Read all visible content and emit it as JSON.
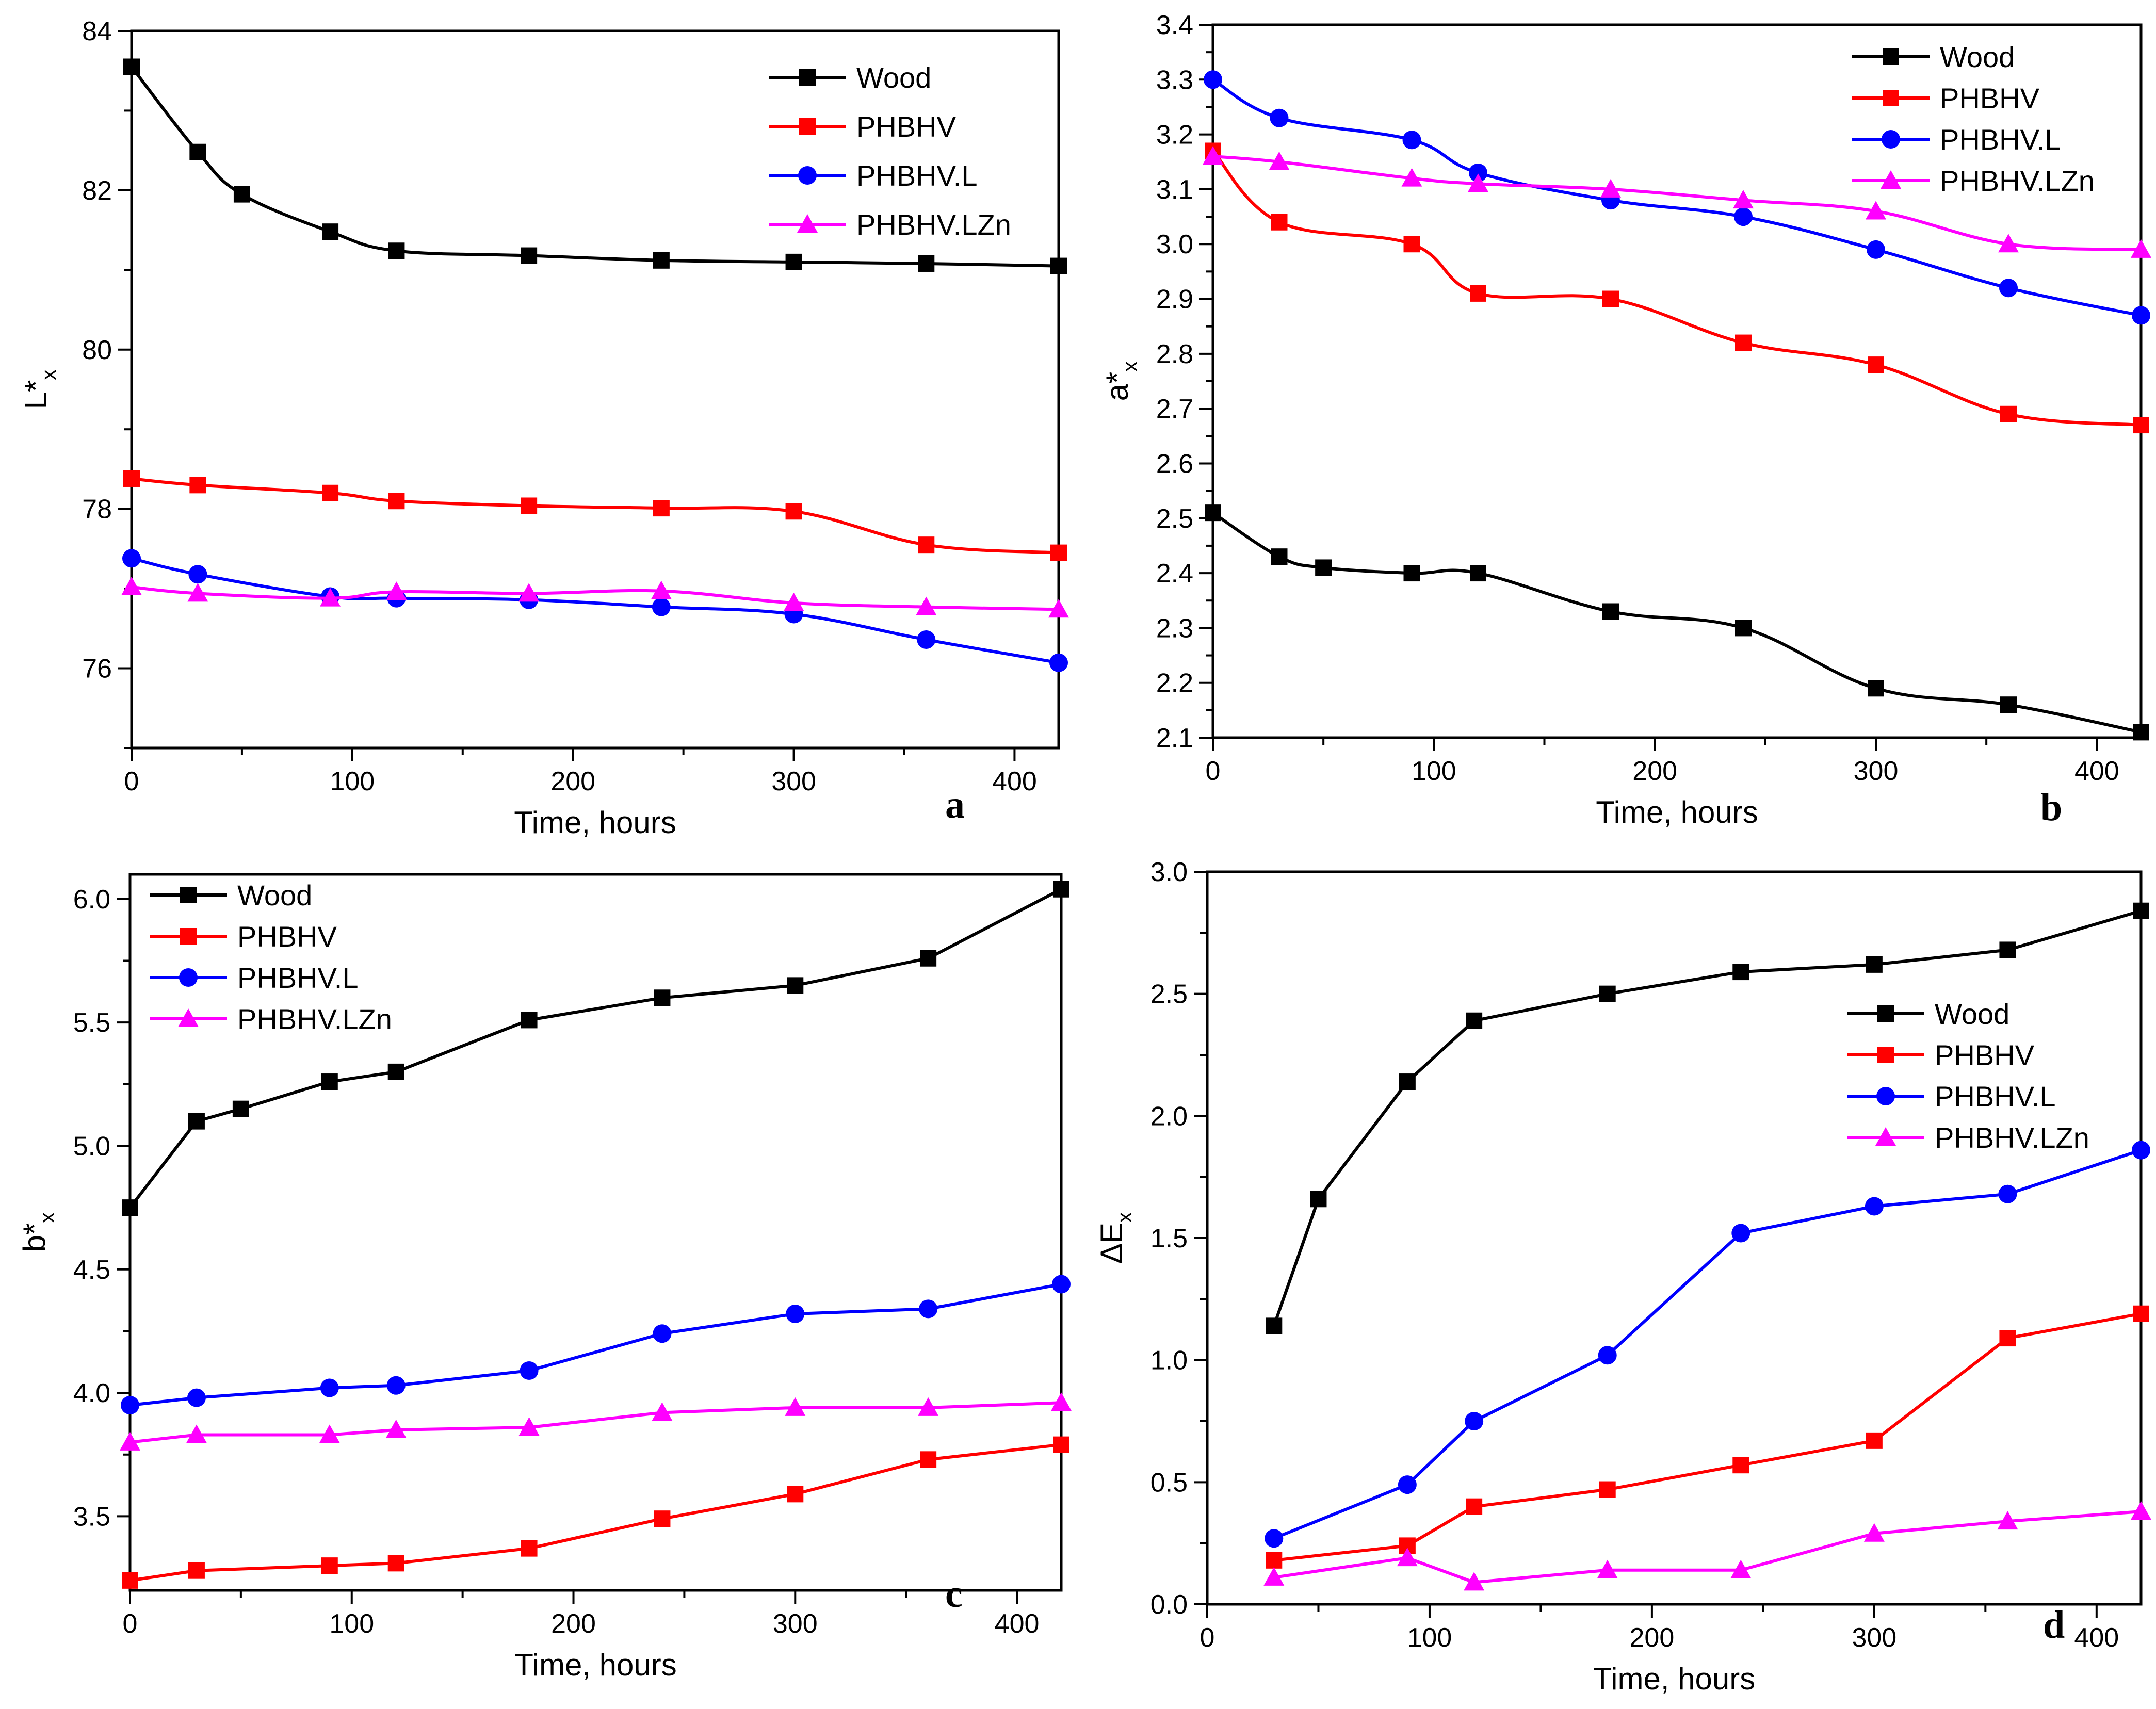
{
  "chart_data": [
    {
      "type": "line",
      "panel": "a",
      "xlabel": "Time, hours",
      "ylabel": "L*",
      "ylabel_sub": "x",
      "xlim": [
        0,
        420
      ],
      "ylim": [
        75,
        84
      ],
      "xticks": [
        0,
        100,
        200,
        300,
        400
      ],
      "yticks": [
        76,
        78,
        80,
        82,
        84
      ],
      "smooth": true,
      "legend_position": "top-right",
      "series": [
        {
          "name": "Wood",
          "color": "#000000",
          "marker": "square",
          "x": [
            0,
            30,
            50,
            90,
            120,
            180,
            240,
            300,
            360,
            420
          ],
          "y": [
            83.55,
            82.48,
            81.95,
            81.48,
            81.24,
            81.18,
            81.12,
            81.1,
            81.08,
            81.05
          ]
        },
        {
          "name": "PHBHV",
          "color": "#ff0000",
          "marker": "square",
          "x": [
            0,
            30,
            90,
            120,
            180,
            240,
            300,
            360,
            420
          ],
          "y": [
            78.38,
            78.3,
            78.2,
            78.1,
            78.04,
            78.01,
            77.97,
            77.55,
            77.45
          ]
        },
        {
          "name": "PHBHV.L",
          "color": "#0000ff",
          "marker": "circle",
          "x": [
            0,
            30,
            90,
            120,
            180,
            240,
            300,
            360,
            420
          ],
          "y": [
            77.38,
            77.18,
            76.9,
            76.88,
            76.86,
            76.77,
            76.68,
            76.36,
            76.07
          ]
        },
        {
          "name": "PHBHV.LZn",
          "color": "#ff00ff",
          "marker": "triangle",
          "x": [
            0,
            30,
            90,
            120,
            180,
            240,
            300,
            360,
            420
          ],
          "y": [
            77.02,
            76.94,
            76.88,
            76.96,
            76.94,
            76.97,
            76.82,
            76.77,
            76.74
          ]
        }
      ]
    },
    {
      "type": "line",
      "panel": "b",
      "xlabel": "Time, hours",
      "ylabel": "a*",
      "ylabel_sub": "x",
      "xlim": [
        0,
        420
      ],
      "ylim": [
        2.1,
        3.4
      ],
      "xticks": [
        0,
        100,
        200,
        300,
        400
      ],
      "yticks": [
        2.1,
        2.2,
        2.3,
        2.4,
        2.5,
        2.6,
        2.7,
        2.8,
        2.9,
        3.0,
        3.1,
        3.2,
        3.3,
        3.4
      ],
      "smooth": true,
      "legend_position": "top-right",
      "series": [
        {
          "name": "Wood",
          "color": "#000000",
          "marker": "square",
          "x": [
            0,
            30,
            50,
            90,
            120,
            180,
            240,
            300,
            360,
            420
          ],
          "y": [
            2.51,
            2.43,
            2.41,
            2.4,
            2.4,
            2.33,
            2.3,
            2.19,
            2.16,
            2.11
          ]
        },
        {
          "name": "PHBHV",
          "color": "#ff0000",
          "marker": "square",
          "x": [
            0,
            30,
            90,
            120,
            180,
            240,
            300,
            360,
            420
          ],
          "y": [
            3.17,
            3.04,
            3.0,
            2.91,
            2.9,
            2.82,
            2.78,
            2.69,
            2.67
          ]
        },
        {
          "name": "PHBHV.L",
          "color": "#0000ff",
          "marker": "circle",
          "x": [
            0,
            30,
            90,
            120,
            180,
            240,
            300,
            360,
            420
          ],
          "y": [
            3.3,
            3.23,
            3.19,
            3.13,
            3.08,
            3.05,
            2.99,
            2.92,
            2.87
          ]
        },
        {
          "name": "PHBHV.LZn",
          "color": "#ff00ff",
          "marker": "triangle",
          "x": [
            0,
            30,
            90,
            120,
            180,
            240,
            300,
            360,
            420
          ],
          "y": [
            3.16,
            3.15,
            3.12,
            3.11,
            3.1,
            3.08,
            3.06,
            3.0,
            2.99
          ]
        }
      ]
    },
    {
      "type": "line",
      "panel": "c",
      "xlabel": "Time, hours",
      "ylabel": "b*",
      "ylabel_sub": "x",
      "xlim": [
        0,
        420
      ],
      "ylim": [
        3.2,
        6.1
      ],
      "xticks": [
        0,
        100,
        200,
        300,
        400
      ],
      "yticks": [
        3.5,
        4.0,
        4.5,
        5.0,
        5.5,
        6.0
      ],
      "smooth": false,
      "legend_position": "top-left",
      "series": [
        {
          "name": "Wood",
          "color": "#000000",
          "marker": "square",
          "x": [
            0,
            30,
            50,
            90,
            120,
            180,
            240,
            300,
            360,
            420
          ],
          "y": [
            4.75,
            5.1,
            5.15,
            5.26,
            5.3,
            5.51,
            5.6,
            5.65,
            5.76,
            6.04
          ]
        },
        {
          "name": "PHBHV",
          "color": "#ff0000",
          "marker": "square",
          "x": [
            0,
            30,
            90,
            120,
            180,
            240,
            300,
            360,
            420
          ],
          "y": [
            3.24,
            3.28,
            3.3,
            3.31,
            3.37,
            3.49,
            3.59,
            3.73,
            3.79
          ]
        },
        {
          "name": "PHBHV.L",
          "color": "#0000ff",
          "marker": "circle",
          "x": [
            0,
            30,
            90,
            120,
            180,
            240,
            300,
            360,
            420
          ],
          "y": [
            3.95,
            3.98,
            4.02,
            4.03,
            4.09,
            4.24,
            4.32,
            4.34,
            4.44
          ]
        },
        {
          "name": "PHBHV.LZn",
          "color": "#ff00ff",
          "marker": "triangle",
          "x": [
            0,
            30,
            90,
            120,
            180,
            240,
            300,
            360,
            420
          ],
          "y": [
            3.8,
            3.83,
            3.83,
            3.85,
            3.86,
            3.92,
            3.94,
            3.94,
            3.96
          ]
        }
      ]
    },
    {
      "type": "line",
      "panel": "d",
      "xlabel": "Time, hours",
      "ylabel": "ΔE",
      "ylabel_sub": "x",
      "xlim": [
        0,
        420
      ],
      "ylim": [
        0,
        3.0
      ],
      "xticks": [
        0,
        100,
        200,
        300,
        400
      ],
      "yticks": [
        0.0,
        0.5,
        1.0,
        1.5,
        2.0,
        2.5,
        3.0
      ],
      "smooth": false,
      "legend_position": "middle-right",
      "series": [
        {
          "name": "Wood",
          "color": "#000000",
          "marker": "square",
          "x": [
            30,
            50,
            90,
            120,
            180,
            240,
            300,
            360,
            420
          ],
          "y": [
            1.14,
            1.66,
            2.14,
            2.39,
            2.5,
            2.59,
            2.62,
            2.68,
            2.84
          ]
        },
        {
          "name": "PHBHV",
          "color": "#ff0000",
          "marker": "square",
          "x": [
            30,
            90,
            120,
            180,
            240,
            300,
            360,
            420
          ],
          "y": [
            0.18,
            0.24,
            0.4,
            0.47,
            0.57,
            0.67,
            1.09,
            1.19
          ]
        },
        {
          "name": "PHBHV.L",
          "color": "#0000ff",
          "marker": "circle",
          "x": [
            30,
            90,
            120,
            180,
            240,
            300,
            360,
            420
          ],
          "y": [
            0.27,
            0.49,
            0.75,
            1.02,
            1.52,
            1.63,
            1.68,
            1.86
          ]
        },
        {
          "name": "PHBHV.LZn",
          "color": "#ff00ff",
          "marker": "triangle",
          "x": [
            30,
            90,
            120,
            180,
            240,
            300,
            360,
            420
          ],
          "y": [
            0.11,
            0.19,
            0.09,
            0.14,
            0.14,
            0.29,
            0.34,
            0.38
          ]
        }
      ]
    }
  ]
}
